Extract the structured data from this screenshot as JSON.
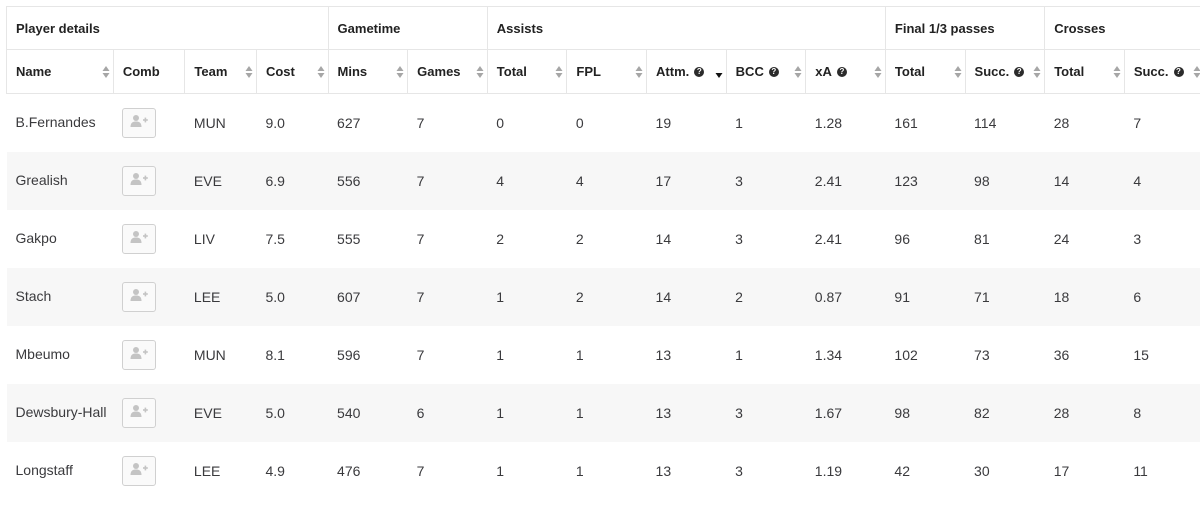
{
  "groups": [
    {
      "label": "Player details",
      "span": 4
    },
    {
      "label": "Gametime",
      "span": 2
    },
    {
      "label": "Assists",
      "span": 5
    },
    {
      "label": "Final 1/3 passes",
      "span": 2
    },
    {
      "label": "Crosses",
      "span": 2
    }
  ],
  "columns": [
    {
      "label": "Name",
      "info": false,
      "sort": "both"
    },
    {
      "label": "Comb",
      "info": false,
      "sort": "none"
    },
    {
      "label": "Team",
      "info": false,
      "sort": "both"
    },
    {
      "label": "Cost",
      "info": false,
      "sort": "both"
    },
    {
      "label": "Mins",
      "info": false,
      "sort": "both"
    },
    {
      "label": "Games",
      "info": false,
      "sort": "both"
    },
    {
      "label": "Total",
      "info": false,
      "sort": "both"
    },
    {
      "label": "FPL",
      "info": false,
      "sort": "both"
    },
    {
      "label": "Attm.",
      "info": true,
      "sort": "desc"
    },
    {
      "label": "BCC",
      "info": true,
      "sort": "both"
    },
    {
      "label": "xA",
      "info": true,
      "sort": "both"
    },
    {
      "label": "Total",
      "info": false,
      "sort": "both"
    },
    {
      "label": "Succ.",
      "info": true,
      "sort": "both"
    },
    {
      "label": "Total",
      "info": false,
      "sort": "both"
    },
    {
      "label": "Succ.",
      "info": true,
      "sort": "both"
    }
  ],
  "rows": [
    {
      "name": "B.Fernandes",
      "team": "MUN",
      "cost": "9.0",
      "mins": "627",
      "games": "7",
      "assists_total": "0",
      "fpl": "0",
      "attm": "19",
      "bcc": "1",
      "xa": "1.28",
      "final_total": "161",
      "final_succ": "114",
      "cross_total": "28",
      "cross_succ": "7"
    },
    {
      "name": "Grealish",
      "team": "EVE",
      "cost": "6.9",
      "mins": "556",
      "games": "7",
      "assists_total": "4",
      "fpl": "4",
      "attm": "17",
      "bcc": "3",
      "xa": "2.41",
      "final_total": "123",
      "final_succ": "98",
      "cross_total": "14",
      "cross_succ": "4"
    },
    {
      "name": "Gakpo",
      "team": "LIV",
      "cost": "7.5",
      "mins": "555",
      "games": "7",
      "assists_total": "2",
      "fpl": "2",
      "attm": "14",
      "bcc": "3",
      "xa": "2.41",
      "final_total": "96",
      "final_succ": "81",
      "cross_total": "24",
      "cross_succ": "3"
    },
    {
      "name": "Stach",
      "team": "LEE",
      "cost": "5.0",
      "mins": "607",
      "games": "7",
      "assists_total": "1",
      "fpl": "2",
      "attm": "14",
      "bcc": "2",
      "xa": "0.87",
      "final_total": "91",
      "final_succ": "71",
      "cross_total": "18",
      "cross_succ": "6"
    },
    {
      "name": "Mbeumo",
      "team": "MUN",
      "cost": "8.1",
      "mins": "596",
      "games": "7",
      "assists_total": "1",
      "fpl": "1",
      "attm": "13",
      "bcc": "1",
      "xa": "1.34",
      "final_total": "102",
      "final_succ": "73",
      "cross_total": "36",
      "cross_succ": "15"
    },
    {
      "name": "Dewsbury-Hall",
      "team": "EVE",
      "cost": "5.0",
      "mins": "540",
      "games": "6",
      "assists_total": "1",
      "fpl": "1",
      "attm": "13",
      "bcc": "3",
      "xa": "1.67",
      "final_total": "98",
      "final_succ": "82",
      "cross_total": "28",
      "cross_succ": "8"
    },
    {
      "name": "Longstaff",
      "team": "LEE",
      "cost": "4.9",
      "mins": "476",
      "games": "7",
      "assists_total": "1",
      "fpl": "1",
      "attm": "13",
      "bcc": "3",
      "xa": "1.19",
      "final_total": "42",
      "final_succ": "30",
      "cross_total": "17",
      "cross_succ": "11"
    }
  ],
  "icons": {
    "comb": "add-user-icon",
    "sort": "sort-arrows-icon",
    "info": "question-circle-icon"
  }
}
